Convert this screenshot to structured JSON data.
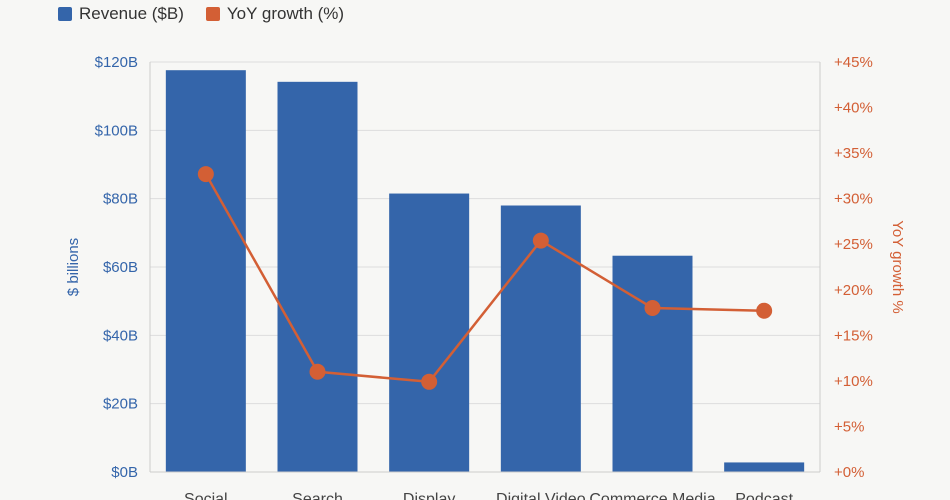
{
  "chart_data": {
    "type": "bar",
    "categories": [
      "Social",
      "Search",
      "Display",
      "Digital Video",
      "Commerce Media",
      "Podcast"
    ],
    "series": [
      {
        "name": "Revenue ($B)",
        "type": "bar",
        "axis": "left",
        "color": "#3465aa",
        "values": [
          117.6,
          114.2,
          81.5,
          78.0,
          63.3,
          2.8
        ]
      },
      {
        "name": "YoY growth (%)",
        "type": "line",
        "axis": "right",
        "color": "#d35f35",
        "values": [
          32.7,
          11.0,
          9.9,
          25.4,
          18.0,
          17.7
        ]
      }
    ],
    "ylabel": "$ billions",
    "y2label": "YoY growth %",
    "ylim": [
      0,
      120
    ],
    "y2lim": [
      0,
      45
    ],
    "yticks": [
      "$0B",
      "$20B",
      "$40B",
      "$60B",
      "$80B",
      "$100B",
      "$120B"
    ],
    "y2ticks": [
      "+0%",
      "+5%",
      "+10%",
      "+15%",
      "+20%",
      "+25%",
      "+30%",
      "+35%",
      "+40%",
      "+45%"
    ],
    "legend_position": "top-left",
    "grid": true
  },
  "colors": {
    "left_axis_text": "#3465aa",
    "right_axis_text": "#d35f35",
    "gridline": "#dddddd"
  }
}
